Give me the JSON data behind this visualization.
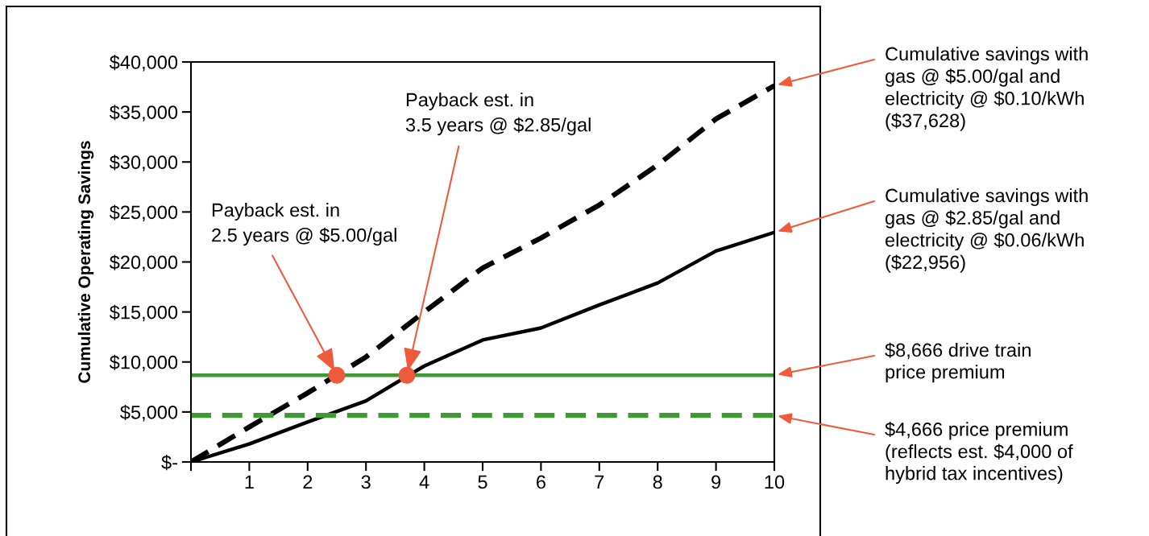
{
  "chart_data": {
    "type": "line",
    "ylabel": "Cumulative Operating Savings",
    "x": [
      0,
      1,
      2,
      3,
      4,
      5,
      6,
      7,
      8,
      9,
      10
    ],
    "series": [
      {
        "color": "#000000",
        "line_style": "dashed",
        "values": [
          0,
          3500,
          6900,
          10500,
          15000,
          19400,
          22400,
          25700,
          29700,
          34300,
          37628
        ]
      },
      {
        "color": "#000000",
        "line_style": "solid",
        "values": [
          0,
          1800,
          4000,
          6100,
          9600,
          12200,
          13400,
          15700,
          17900,
          21100,
          22956
        ]
      },
      {
        "color": "#3f9a36",
        "line_style": "solid",
        "values": [
          8666,
          8666,
          8666,
          8666,
          8666,
          8666,
          8666,
          8666,
          8666,
          8666,
          8666
        ]
      },
      {
        "color": "#3f9a36",
        "line_style": "dashed",
        "values": [
          4666,
          4666,
          4666,
          4666,
          4666,
          4666,
          4666,
          4666,
          4666,
          4666,
          4666
        ]
      },
      {
        "type": "scatter",
        "marker": "circle",
        "color": "#f05a3c",
        "x": [
          2.5,
          3.7
        ],
        "values": [
          8666,
          8666
        ]
      }
    ],
    "xlim": [
      0,
      10
    ],
    "xticks": [
      {
        "value": 0,
        "label": null
      },
      1,
      2,
      3,
      4,
      5,
      6,
      7,
      8,
      9,
      10
    ],
    "ylim": [
      0,
      40000
    ],
    "yticks": [
      {
        "value": 0,
        "label": "$-"
      },
      {
        "value": 5000,
        "label": "$5,000"
      },
      {
        "value": 10000,
        "label": "$10,000"
      },
      {
        "value": 15000,
        "label": "$15,000"
      },
      {
        "value": 20000,
        "label": "$20,000"
      },
      {
        "value": 25000,
        "label": "$25,000"
      },
      {
        "value": 30000,
        "label": "$30,000"
      },
      {
        "value": 35000,
        "label": "$35,000"
      },
      {
        "value": 40000,
        "label": "$40,000"
      }
    ],
    "grid": false,
    "legend": false,
    "annotations": [
      {
        "text": "Payback est. in\n2.5 years @ $5.00/gal",
        "x": 2.5,
        "y": 8666
      },
      {
        "text": "Payback est. in\n3.5 years @ $2.85/gal",
        "x": 3.7,
        "y": 8666
      },
      {
        "text": "Cumulative savings with\ngas @ $5.00/gal and\nelectricity @ $0.10/kWh\n($37,628)",
        "x": 10,
        "y": 37628
      },
      {
        "text": "Cumulative savings with\ngas @ $2.85/gal and\nelectricity @ $0.06/kWh\n($22,956)",
        "x": 10,
        "y": 22956
      },
      {
        "text": "$8,666 drive train\nprice premium",
        "x": 10,
        "y": 8666
      },
      {
        "text": "$4,666 price premium\n(reflects est. $4,000 of\nhybrid tax incentives)",
        "x": 10,
        "y": 4666
      }
    ]
  }
}
